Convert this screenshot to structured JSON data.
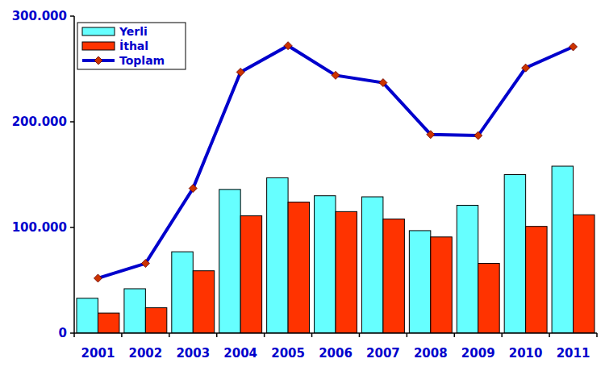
{
  "chart_data": {
    "type": "bar",
    "categories": [
      "2001",
      "2002",
      "2003",
      "2004",
      "2005",
      "2006",
      "2007",
      "2008",
      "2009",
      "2010",
      "2011"
    ],
    "series": [
      {
        "name": "Yerli",
        "type": "bar",
        "color": "#66ffff",
        "values": [
          33000,
          42000,
          77000,
          136000,
          147000,
          130000,
          129000,
          97000,
          121000,
          150000,
          158000
        ]
      },
      {
        "name": "İthal",
        "type": "bar",
        "color": "#ff3300",
        "values": [
          19000,
          24000,
          59000,
          111000,
          124000,
          115000,
          108000,
          91000,
          66000,
          101000,
          112000
        ]
      },
      {
        "name": "Toplam",
        "type": "line",
        "color": "#0000cc",
        "marker": "diamond",
        "values": [
          52000,
          66000,
          137000,
          247000,
          272000,
          244000,
          237000,
          188000,
          187000,
          251000,
          271000
        ]
      }
    ],
    "ylim": [
      0,
      300000
    ],
    "yticks": [
      0,
      {
        "value": 100000,
        "label": "100.000"
      },
      {
        "value": 200000,
        "label": "200.000"
      },
      {
        "value": 300000,
        "label": "300.000"
      }
    ],
    "grid": false,
    "legend": "upper left"
  }
}
